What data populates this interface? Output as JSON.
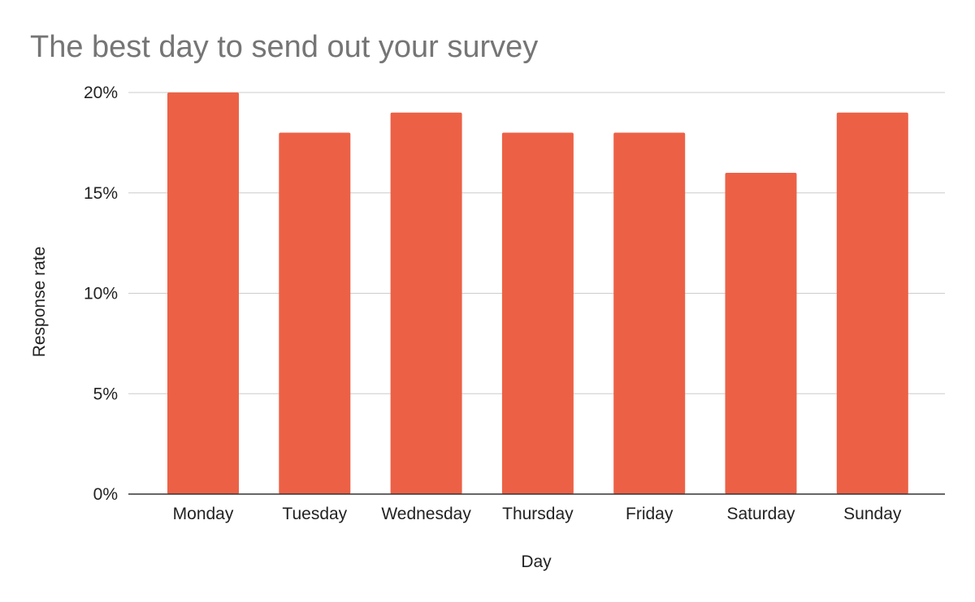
{
  "chart_data": {
    "type": "bar",
    "title": "The best day to send out your survey",
    "xlabel": "Day",
    "ylabel": "Response rate",
    "categories": [
      "Monday",
      "Tuesday",
      "Wednesday",
      "Thursday",
      "Friday",
      "Saturday",
      "Sunday"
    ],
    "values": [
      20,
      18,
      19,
      18,
      18,
      16,
      19
    ],
    "ylim": [
      0,
      20
    ],
    "yticks": [
      0,
      5,
      10,
      15,
      20
    ],
    "ytick_labels": [
      "0%",
      "5%",
      "10%",
      "15%",
      "20%"
    ],
    "bar_color": "#ec6146",
    "grid": true,
    "legend": "none"
  }
}
